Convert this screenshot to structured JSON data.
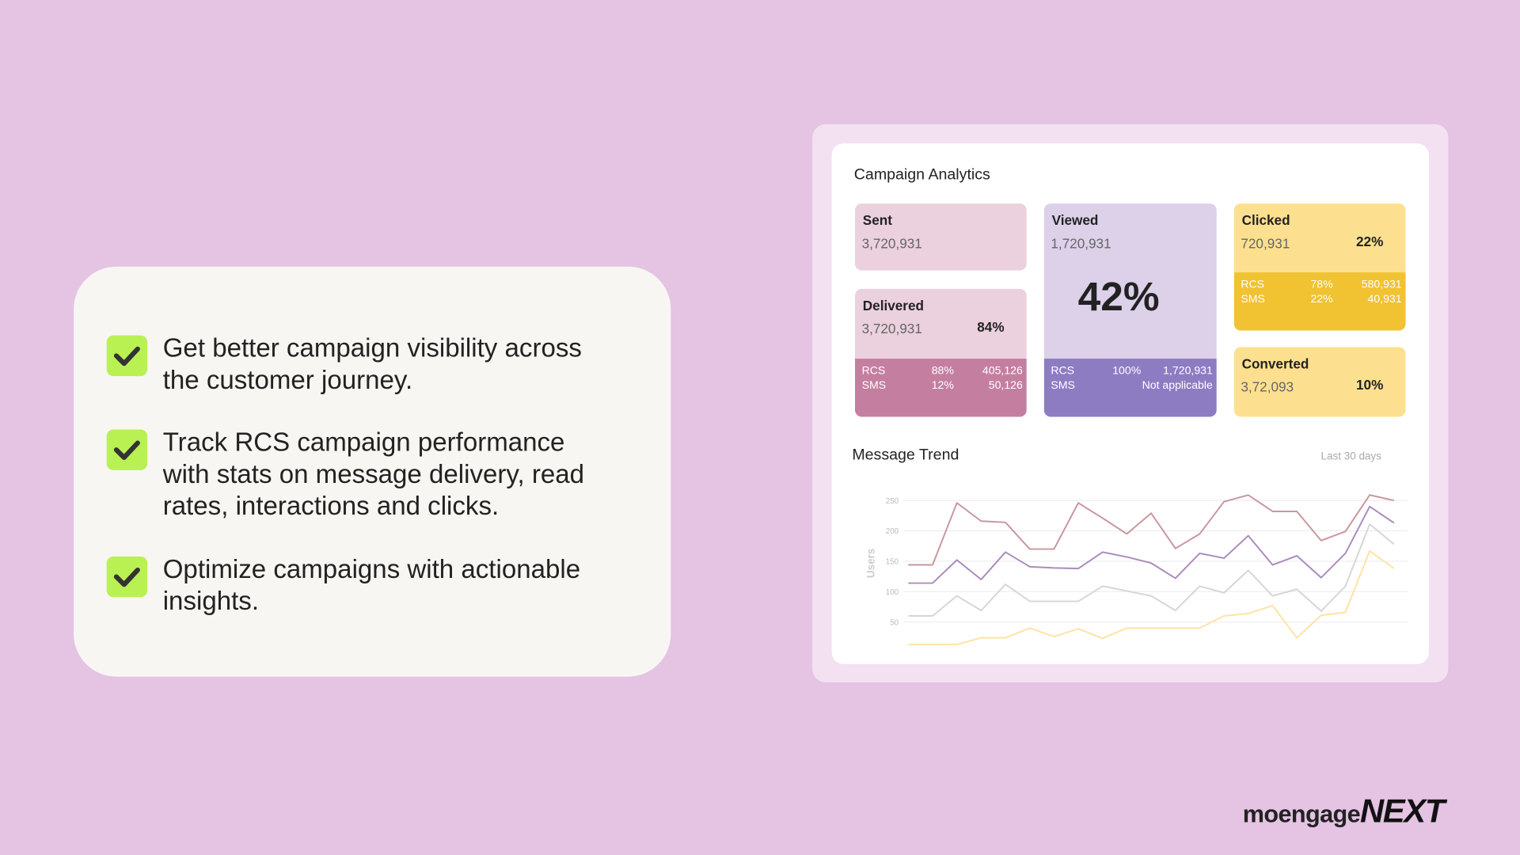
{
  "bullets": [
    "Get better campaign visibility across the customer journey.",
    "Track RCS campaign performance with stats on message delivery, read rates, interactions and clicks.",
    "Optimize campaigns with actionable insights."
  ],
  "dashboard": {
    "title": "Campaign Analytics",
    "cards": [
      {
        "title": "Sent",
        "value": "3,720,931"
      },
      {
        "title": "Delivered",
        "value": "3,720,931",
        "percent": "84%",
        "breakdown": [
          {
            "channel": "RCS",
            "percent": "88%",
            "count": "405,126"
          },
          {
            "channel": "SMS",
            "percent": "12%",
            "count": "50,126"
          }
        ]
      },
      {
        "title": "Viewed",
        "value": "1,720,931",
        "percent": "42%",
        "breakdown": [
          {
            "channel": "RCS",
            "percent": "100%",
            "count": "1,720,931"
          },
          {
            "channel": "SMS",
            "count": "Not applicable"
          }
        ]
      },
      {
        "title": "Clicked",
        "value": "720,931",
        "percent": "22%",
        "breakdown": [
          {
            "channel": "RCS",
            "percent": "78%",
            "count": "580,931"
          },
          {
            "channel": "SMS",
            "percent": "22%",
            "count": "40,931"
          }
        ]
      },
      {
        "title": "Converted",
        "value": "3,72,093",
        "percent": "10%"
      }
    ]
  },
  "chart_data": {
    "type": "line",
    "title": "Message Trend",
    "subtitle": "Last 30 days",
    "y_label": "Users",
    "categories": [
      null,
      null,
      null,
      null,
      null,
      null,
      null,
      null,
      null,
      null,
      null,
      null,
      null,
      null,
      null,
      null,
      null,
      null,
      null,
      null,
      null
    ],
    "series": [
      {
        "color": "#c9969f",
        "values": [
          144,
          144,
          246,
          216,
          214,
          170,
          170,
          246,
          221,
          195,
          229,
          171,
          195,
          248,
          259,
          232,
          232,
          184,
          199,
          259,
          250
        ]
      },
      {
        "color": "#a98cbd",
        "values": [
          114,
          114,
          152,
          120,
          165,
          141,
          139,
          138,
          165,
          157,
          147,
          122,
          163,
          155,
          192,
          144,
          159,
          123,
          163,
          240,
          213
        ]
      },
      {
        "color": "#d6d6d6",
        "values": [
          60,
          60,
          93,
          69,
          112,
          84,
          84,
          84,
          109,
          101,
          93,
          69,
          109,
          98,
          135,
          93,
          104,
          68,
          109,
          211,
          178
        ]
      },
      {
        "color": "#fde3a3",
        "values": [
          13,
          13,
          13,
          24,
          24,
          40,
          26,
          39,
          23,
          40,
          40,
          40,
          40,
          60,
          64,
          77,
          24,
          61,
          66,
          167,
          138
        ]
      }
    ],
    "ylim": [
      0,
      260
    ],
    "yticks": [
      50,
      100,
      150,
      200,
      250
    ],
    "grid": true
  },
  "logo": {
    "brand": "moengage",
    "suffix": "NEXT"
  }
}
